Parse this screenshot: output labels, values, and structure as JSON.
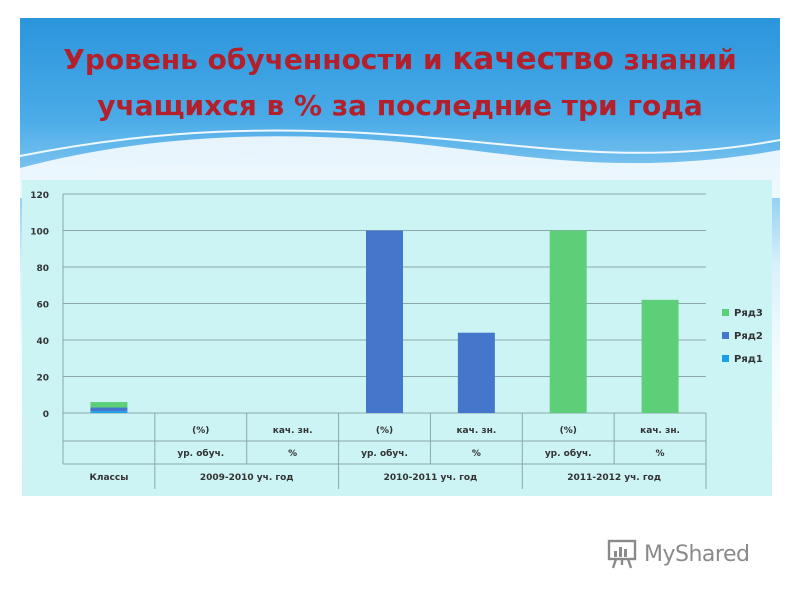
{
  "slide": {
    "title_line1_a": "Уровень обученности и ",
    "title_line1_b": "качество",
    "title_line1_c": " знаний",
    "title_line2": "учащихся в % за последние три года"
  },
  "watermark": {
    "text": "MyShared",
    "icon": "presentation-board-icon"
  },
  "colors": {
    "title": "#b3202c",
    "row1": "#1aa0e8",
    "row2": "#4477cc",
    "row3": "#5ccf78",
    "panel": "#ccf4f4"
  },
  "chart_data": {
    "type": "bar",
    "stacked": true,
    "ylim": [
      0,
      120
    ],
    "yticks": [
      0,
      20,
      40,
      60,
      80,
      100,
      120
    ],
    "grid": true,
    "legend_position": "right",
    "categories": [
      [
        "",
        "",
        "Классы"
      ],
      [
        "(%)",
        "ур. обуч.",
        "2009-2010 уч. год"
      ],
      [
        "кач. зн.",
        "%",
        "2009-2010 уч. год"
      ],
      [
        "(%)",
        "ур. обуч.",
        "2010-2011   уч. год"
      ],
      [
        "кач. зн.",
        "%",
        "2010-2011   уч. год"
      ],
      [
        "(%)",
        "ур. обуч.",
        "2011-2012 уч. год"
      ],
      [
        "кач. зн.",
        "%",
        "2011-2012 уч. год"
      ]
    ],
    "axis_rows": {
      "row1": [
        "",
        "(%)",
        "кач. зн.",
        "(%)",
        "кач. зн.",
        "(%)",
        "кач. зн."
      ],
      "row2": [
        "",
        "ур. обуч.",
        "%",
        "ур. обуч.",
        "%",
        "ур. обуч.",
        "%"
      ],
      "groups": [
        {
          "label": "Классы",
          "span": 1
        },
        {
          "label": "2009-2010 уч. год",
          "span": 2
        },
        {
          "label": "2010-2011   уч. год",
          "span": 2
        },
        {
          "label": "2011-2012 уч. год",
          "span": 2
        }
      ]
    },
    "series": [
      {
        "name": "Ряд1",
        "color": "#1aa0e8",
        "values": [
          1,
          0,
          0,
          0,
          0,
          0,
          0
        ]
      },
      {
        "name": "Ряд2",
        "color": "#4477cc",
        "values": [
          2,
          0,
          0,
          100,
          44,
          0,
          0
        ]
      },
      {
        "name": "Ряд3",
        "color": "#5ccf78",
        "values": [
          3,
          0,
          0,
          0,
          0,
          100,
          62
        ]
      }
    ],
    "legend_order": [
      "Ряд3",
      "Ряд2",
      "Ряд1"
    ]
  }
}
